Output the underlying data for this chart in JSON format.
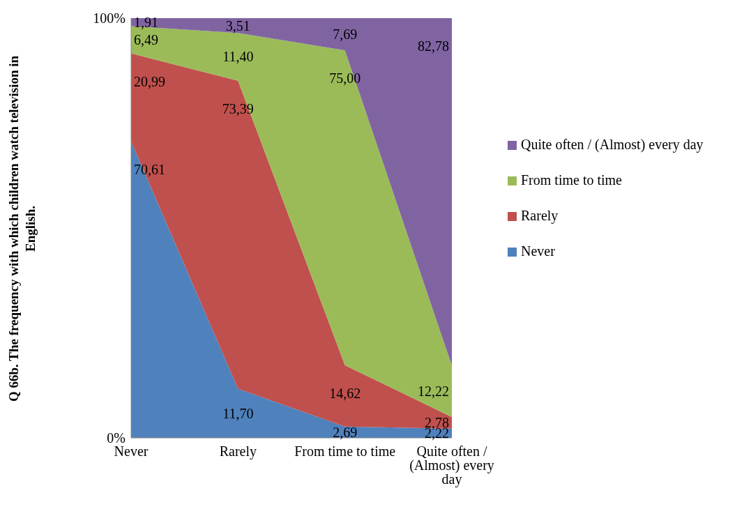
{
  "chart_data": {
    "type": "area",
    "stacked": true,
    "ylabel": "Q 66b. The frequency with which children watch television in English.",
    "categories": [
      "Never",
      "Rarely",
      "From time to time",
      "Quite often / (Almost) every day"
    ],
    "ylim": [
      0,
      100
    ],
    "yticks": [
      {
        "value": 0,
        "label": "0%"
      },
      {
        "value": 100,
        "label": "100%"
      }
    ],
    "legend": "right",
    "series": [
      {
        "name": "Never",
        "color": "#4f81bd",
        "values": [
          70.61,
          11.7,
          2.69,
          2.22
        ],
        "value_labels": [
          "70,61",
          "11,70",
          "2,69",
          "2,22"
        ]
      },
      {
        "name": "Rarely",
        "color": "#c0504d",
        "values": [
          20.99,
          73.39,
          14.62,
          2.78
        ],
        "value_labels": [
          "20,99",
          "73,39",
          "14,62",
          "2,78"
        ]
      },
      {
        "name": "From time to time",
        "color": "#9bbb59",
        "values": [
          6.49,
          11.4,
          75.0,
          12.22
        ],
        "value_labels": [
          "6,49",
          "11,40",
          "75,00",
          "12,22"
        ]
      },
      {
        "name": "Quite often / (Almost) every day",
        "color": "#8064a2",
        "values": [
          1.91,
          3.51,
          7.69,
          82.78
        ],
        "value_labels": [
          "1,91",
          "3,51",
          "7,69",
          "82,78"
        ]
      }
    ]
  }
}
